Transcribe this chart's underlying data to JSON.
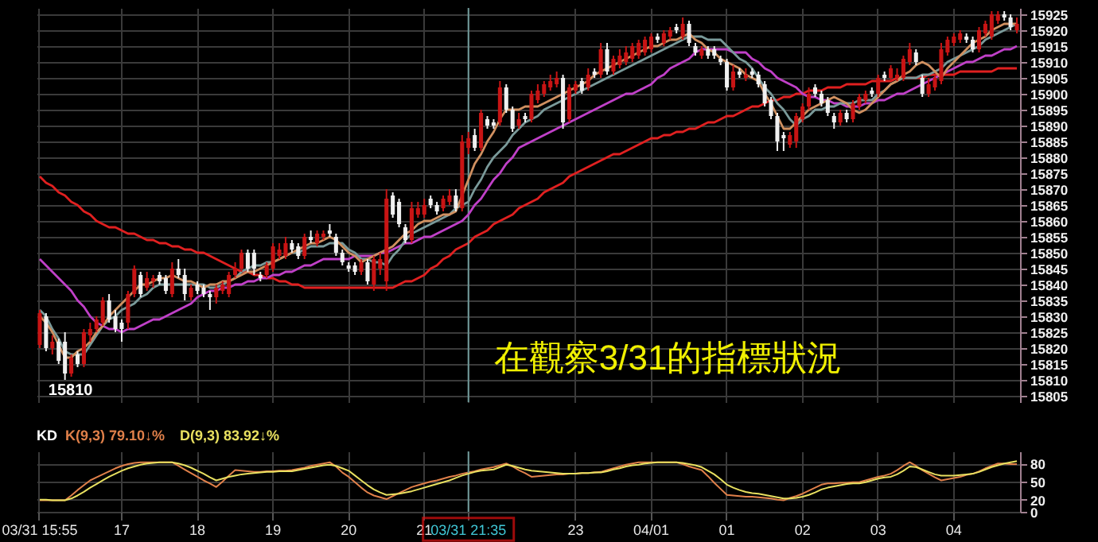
{
  "chart_data": [
    {
      "type": "candlestick",
      "categories": [
        "03/31 15:55",
        null,
        null,
        null,
        null,
        null,
        null,
        null,
        null,
        null,
        null,
        null,
        null,
        "17",
        null,
        null,
        null,
        null,
        null,
        null,
        null,
        null,
        null,
        null,
        null,
        "18",
        null,
        null,
        null,
        null,
        null,
        null,
        null,
        null,
        null,
        null,
        null,
        "19",
        null,
        null,
        null,
        null,
        null,
        null,
        null,
        null,
        null,
        null,
        null,
        "20",
        null,
        null,
        null,
        null,
        null,
        null,
        null,
        null,
        null,
        null,
        null,
        "21",
        null,
        null,
        null,
        null,
        null,
        null,
        "03/31 21:35",
        null,
        null,
        null,
        null,
        null,
        null,
        null,
        null,
        null,
        null,
        null,
        null,
        null,
        null,
        null,
        null,
        "23",
        null,
        null,
        null,
        null,
        null,
        null,
        null,
        null,
        null,
        null,
        null,
        "04/01",
        null,
        null,
        null,
        null,
        null,
        null,
        null,
        null,
        null,
        null,
        null,
        "01",
        null,
        null,
        null,
        null,
        null,
        null,
        null,
        null,
        null,
        null,
        null,
        "02",
        null,
        null,
        null,
        null,
        null,
        null,
        null,
        null,
        null,
        null,
        null,
        "03",
        null,
        null,
        null,
        null,
        null,
        null,
        null,
        null,
        null,
        null,
        null,
        "04",
        null,
        null,
        null,
        null,
        null,
        null,
        null,
        null,
        null,
        null
      ],
      "ohlc": [
        [
          15821,
          15832,
          15820,
          15831
        ],
        [
          15830,
          15831,
          15819,
          15820
        ],
        [
          15820,
          15824,
          15818,
          15822
        ],
        [
          15822,
          15823,
          15815,
          15816
        ],
        [
          15822,
          15825,
          15810,
          15812
        ],
        [
          15812,
          15818,
          15811,
          15817
        ],
        [
          15818,
          15819,
          15814,
          15815
        ],
        [
          15815,
          15826,
          15814,
          15825
        ],
        [
          15824,
          15828,
          15822,
          15826
        ],
        [
          15826,
          15830,
          15825,
          15829
        ],
        [
          15828,
          15836,
          15827,
          15835
        ],
        [
          15835,
          15837,
          15828,
          15829
        ],
        [
          15830,
          15832,
          15825,
          15826
        ],
        [
          15828,
          15829,
          15822,
          15826
        ],
        [
          15828,
          15838,
          15826,
          15837
        ],
        [
          15837,
          15846,
          15836,
          15845
        ],
        [
          15843,
          15844,
          15836,
          15837
        ],
        [
          15839,
          15844,
          15838,
          15842
        ],
        [
          15841,
          15843,
          15839,
          15842
        ],
        [
          15843,
          15844,
          15840,
          15841
        ],
        [
          15842,
          15843,
          15837,
          15838
        ],
        [
          15837,
          15847,
          15836,
          15845
        ],
        [
          15845,
          15848,
          15842,
          15843
        ],
        [
          15843,
          15845,
          15835,
          15837
        ],
        [
          15836,
          15840,
          15835,
          15839
        ],
        [
          15840,
          15841,
          15837,
          15838
        ],
        [
          15839,
          15840,
          15836,
          15837
        ],
        [
          15837,
          15838,
          15832,
          15836
        ],
        [
          15836,
          15840,
          15834,
          15839
        ],
        [
          15838,
          15841,
          15837,
          15840
        ],
        [
          15837,
          15844,
          15836,
          15843
        ],
        [
          15843,
          15847,
          15842,
          15845
        ],
        [
          15845,
          15851,
          15844,
          15850
        ],
        [
          15850,
          15851,
          15844,
          15845
        ],
        [
          15850,
          15851,
          15843,
          15845
        ],
        [
          15843,
          15844,
          15841,
          15842
        ],
        [
          15843,
          15847,
          15842,
          15846
        ],
        [
          15845,
          15853,
          15844,
          15852
        ],
        [
          15849,
          15853,
          15848,
          15851
        ],
        [
          15849,
          15855,
          15848,
          15853
        ],
        [
          15853,
          15854,
          15850,
          15851
        ],
        [
          15852,
          15853,
          15848,
          15849
        ],
        [
          15849,
          15856,
          15848,
          15855
        ],
        [
          15855,
          15857,
          15853,
          15854
        ],
        [
          15853,
          15857,
          15852,
          15856
        ],
        [
          15855,
          15857,
          15854,
          15856
        ],
        [
          15857,
          15859,
          15855,
          15856
        ],
        [
          15855,
          15856,
          15849,
          15850
        ],
        [
          15850,
          15851,
          15846,
          15847
        ],
        [
          15846,
          15847,
          15844,
          15845
        ],
        [
          15846,
          15847,
          15843,
          15844
        ],
        [
          15844,
          15848,
          15843,
          15847
        ],
        [
          15847,
          15848,
          15840,
          15841
        ],
        [
          15840,
          15849,
          15838,
          15848
        ],
        [
          15845,
          15850,
          15843,
          15848
        ],
        [
          15841,
          15870,
          15838,
          15867
        ],
        [
          15868,
          15869,
          15861,
          15862
        ],
        [
          15866,
          15867,
          15858,
          15859
        ],
        [
          15858,
          15859,
          15853,
          15854
        ],
        [
          15854,
          15866,
          15853,
          15864
        ],
        [
          15862,
          15866,
          15861,
          15864
        ],
        [
          15862,
          15867,
          15861,
          15865
        ],
        [
          15867,
          15868,
          15864,
          15865
        ],
        [
          15865,
          15866,
          15862,
          15863
        ],
        [
          15864,
          15868,
          15863,
          15867
        ],
        [
          15866,
          15870,
          15865,
          15868
        ],
        [
          15868,
          15870,
          15863,
          15864
        ],
        [
          15864,
          15887,
          15863,
          15885
        ],
        [
          15883,
          15888,
          15881,
          15886
        ],
        [
          15887,
          15889,
          15882,
          15883
        ],
        [
          15883,
          15895,
          15882,
          15894
        ],
        [
          15892,
          15893,
          15889,
          15890
        ],
        [
          15891,
          15892,
          15889,
          15890
        ],
        [
          15891,
          15904,
          15890,
          15902
        ],
        [
          15902,
          15903,
          15894,
          15895
        ],
        [
          15895,
          15896,
          15888,
          15889
        ],
        [
          15890,
          15894,
          15889,
          15892
        ],
        [
          15893,
          15894,
          15891,
          15892
        ],
        [
          15892,
          15901,
          15891,
          15900
        ],
        [
          15898,
          15903,
          15897,
          15901
        ],
        [
          15900,
          15904,
          15899,
          15903
        ],
        [
          15902,
          15906,
          15901,
          15904
        ],
        [
          15903,
          15907,
          15902,
          15905
        ],
        [
          15905,
          15906,
          15889,
          15891
        ],
        [
          15892,
          15903,
          15891,
          15902
        ],
        [
          15901,
          15904,
          15900,
          15903
        ],
        [
          15904,
          15905,
          15900,
          15901
        ],
        [
          15902,
          15908,
          15901,
          15906
        ],
        [
          15907,
          15908,
          15905,
          15906
        ],
        [
          15906,
          15916,
          15905,
          15914
        ],
        [
          15914,
          15916,
          15906,
          15907
        ],
        [
          15907,
          15912,
          15906,
          15911
        ],
        [
          15909,
          15914,
          15908,
          15912
        ],
        [
          15910,
          15915,
          15909,
          15913
        ],
        [
          15911,
          15916,
          15910,
          15915
        ],
        [
          15912,
          15917,
          15911,
          15916
        ],
        [
          15913,
          15918,
          15912,
          15917
        ],
        [
          15914,
          15919,
          15913,
          15918
        ],
        [
          15918,
          15919,
          15916,
          15917
        ],
        [
          15916,
          15920,
          15915,
          15919
        ],
        [
          15918,
          15921,
          15917,
          15920
        ],
        [
          15921,
          15922,
          15919,
          15920
        ],
        [
          15918,
          15924,
          15917,
          15922
        ],
        [
          15922,
          15923,
          15915,
          15916
        ],
        [
          15915,
          15916,
          15912,
          15913
        ],
        [
          15912,
          15915,
          15911,
          15914
        ],
        [
          15914,
          15915,
          15911,
          15912
        ],
        [
          15914,
          15915,
          15911,
          15912
        ],
        [
          15911,
          15912,
          15909,
          15910
        ],
        [
          15910,
          15911,
          15901,
          15902
        ],
        [
          15902,
          15909,
          15901,
          15907
        ],
        [
          15907,
          15908,
          15905,
          15906
        ],
        [
          15905,
          15908,
          15904,
          15906
        ],
        [
          15907,
          15908,
          15905,
          15906
        ],
        [
          15906,
          15907,
          15902,
          15903
        ],
        [
          15903,
          15904,
          15896,
          15897
        ],
        [
          15898,
          15899,
          15892,
          15893
        ],
        [
          15893,
          15894,
          15882,
          15885
        ],
        [
          15887,
          15888,
          15882,
          15886
        ],
        [
          15884,
          15888,
          15883,
          15887
        ],
        [
          15885,
          15894,
          15883,
          15893
        ],
        [
          15892,
          15897,
          15891,
          15896
        ],
        [
          15896,
          15902,
          15895,
          15900
        ],
        [
          15902,
          15903,
          15899,
          15900
        ],
        [
          15900,
          15901,
          15896,
          15897
        ],
        [
          15898,
          15899,
          15893,
          15894
        ],
        [
          15893,
          15894,
          15889,
          15891
        ],
        [
          15891,
          15895,
          15890,
          15894
        ],
        [
          15894,
          15895,
          15891,
          15892
        ],
        [
          15892,
          15898,
          15891,
          15897
        ],
        [
          15896,
          15900,
          15895,
          15899
        ],
        [
          15898,
          15901,
          15897,
          15900
        ],
        [
          15901,
          15902,
          15899,
          15900
        ],
        [
          15900,
          15906,
          15899,
          15905
        ],
        [
          15906,
          15907,
          15904,
          15905
        ],
        [
          15905,
          15909,
          15904,
          15908
        ],
        [
          15905,
          15908,
          15904,
          15906
        ],
        [
          15905,
          15912,
          15904,
          15911
        ],
        [
          15910,
          15916,
          15909,
          15914
        ],
        [
          15913,
          15914,
          15909,
          15910
        ],
        [
          15905,
          15906,
          15899,
          15900
        ],
        [
          15900,
          15905,
          15899,
          15903
        ],
        [
          15902,
          15906,
          15901,
          15905
        ],
        [
          15904,
          15916,
          15903,
          15914
        ],
        [
          15913,
          15918,
          15912,
          15917
        ],
        [
          15916,
          15919,
          15915,
          15918
        ],
        [
          15917,
          15920,
          15916,
          15919
        ],
        [
          15918,
          15919,
          15916,
          15917
        ],
        [
          15917,
          15918,
          15913,
          15914
        ],
        [
          15914,
          15921,
          15913,
          15920
        ],
        [
          15919,
          15923,
          15918,
          15922
        ],
        [
          15918,
          15926,
          15917,
          15925
        ],
        [
          15923,
          15926,
          15922,
          15925
        ],
        [
          15925,
          15926,
          15923,
          15924
        ],
        [
          15924,
          15925,
          15920,
          15921
        ],
        [
          15920,
          15924,
          15919,
          15922
        ]
      ],
      "series": [
        {
          "type": "line",
          "color": "#e02020",
          "values": [
            15874,
            15872,
            15871,
            15869,
            15868,
            15866,
            15865,
            15863,
            15862,
            15860,
            15859,
            15858,
            15858,
            15857,
            15856,
            15856,
            15855,
            15854,
            15854,
            15853,
            15853,
            15852,
            15852,
            15851,
            15851,
            15850,
            15850,
            15849,
            15848,
            15847,
            15846,
            15845,
            15844,
            15844,
            15843,
            15843,
            15842,
            15842,
            15841,
            15841,
            15840,
            15840,
            15839,
            15839,
            15839,
            15839,
            15839,
            15839,
            15839,
            15839,
            15839,
            15839,
            15839,
            15839,
            15839,
            15839,
            15839,
            15840,
            15841,
            15841,
            15842,
            15843,
            15845,
            15846,
            15848,
            15849,
            15851,
            15852,
            15853,
            15855,
            15856,
            15857,
            15859,
            15860,
            15861,
            15862,
            15864,
            15865,
            15866,
            15867,
            15869,
            15870,
            15871,
            15872,
            15874,
            15875,
            15876,
            15877,
            15878,
            15879,
            15880,
            15881,
            15881,
            15882,
            15883,
            15884,
            15885,
            15886,
            15886,
            15887,
            15887,
            15888,
            15888,
            15889,
            15889,
            15890,
            15891,
            15891,
            15892,
            15893,
            15893,
            15894,
            15895,
            15896,
            15896,
            15897,
            15898,
            15898,
            15899,
            15899,
            15900,
            15900,
            15901,
            15901,
            15901,
            15902,
            15902,
            15902,
            15903,
            15903,
            15903,
            15903,
            15904,
            15904,
            15904,
            15904,
            15905,
            15905,
            15905,
            15905,
            15905,
            15906,
            15906,
            15906,
            15906,
            15906,
            15907,
            15907,
            15907,
            15907,
            15907,
            15907,
            15908,
            15908,
            15908,
            15908
          ]
        },
        {
          "type": "line",
          "color": "#c040c8",
          "values": [
            15848,
            15846,
            15844,
            15842,
            15840,
            15838,
            15835,
            15833,
            15830,
            15828,
            15827,
            15826,
            15826,
            15825,
            15826,
            15826,
            15827,
            15828,
            15829,
            15829,
            15830,
            15831,
            15832,
            15833,
            15834,
            15836,
            15837,
            15838,
            15838,
            15839,
            15839,
            15840,
            15840,
            15841,
            15841,
            15842,
            15842,
            15843,
            15843,
            15844,
            15844,
            15845,
            15846,
            15846,
            15847,
            15848,
            15848,
            15848,
            15848,
            15848,
            15849,
            15849,
            15849,
            15849,
            15850,
            15850,
            15851,
            15852,
            15853,
            15853,
            15854,
            15855,
            15855,
            15856,
            15857,
            15858,
            15859,
            15860,
            15862,
            15865,
            15867,
            15870,
            15873,
            15875,
            15878,
            15880,
            15883,
            15884,
            15885,
            15886,
            15887,
            15888,
            15889,
            15890,
            15891,
            15892,
            15893,
            15894,
            15895,
            15896,
            15897,
            15898,
            15899,
            15900,
            15900,
            15901,
            15902,
            15903,
            15905,
            15906,
            15908,
            15909,
            15910,
            15911,
            15913,
            15914,
            15914,
            15914,
            15914,
            15914,
            15913,
            15913,
            15913,
            15911,
            15910,
            15908,
            15907,
            15905,
            15904,
            15903,
            15902,
            15900,
            15899,
            15899,
            15898,
            15898,
            15897,
            15897,
            15896,
            15896,
            15896,
            15897,
            15897,
            15898,
            15898,
            15899,
            15900,
            15900,
            15901,
            15902,
            15903,
            15904,
            15905,
            15906,
            15907,
            15908,
            15909,
            15910,
            15910,
            15911,
            15912,
            15912,
            15913,
            15914,
            15914,
            15915
          ]
        },
        {
          "type": "line",
          "color": "#7a9a9a",
          "values": [
            15832,
            15830,
            15826,
            15823,
            15819,
            15818,
            15818,
            15818,
            15821,
            15824,
            15827,
            15829,
            15830,
            15832,
            15833,
            15834,
            15836,
            15837,
            15839,
            15840,
            15840,
            15840,
            15840,
            15840,
            15840,
            15840,
            15840,
            15839,
            15839,
            15840,
            15841,
            15842,
            15844,
            15845,
            15846,
            15846,
            15847,
            15847,
            15848,
            15849,
            15850,
            15850,
            15851,
            15852,
            15852,
            15852,
            15853,
            15853,
            15853,
            15851,
            15850,
            15848,
            15848,
            15847,
            15847,
            15846,
            15849,
            15851,
            15854,
            15856,
            15857,
            15858,
            15859,
            15860,
            15861,
            15862,
            15864,
            15865,
            15866,
            15870,
            15873,
            15877,
            15880,
            15882,
            15884,
            15887,
            15889,
            15891,
            15892,
            15893,
            15895,
            15896,
            15897,
            15898,
            15899,
            15900,
            15901,
            15902,
            15903,
            15904,
            15905,
            15906,
            15907,
            15908,
            15909,
            15910,
            15911,
            15912,
            15913,
            15914,
            15915,
            15916,
            15917,
            15918,
            15918,
            15918,
            15917,
            15917,
            15917,
            15915,
            15913,
            15911,
            15910,
            15908,
            15905,
            15902,
            15900,
            15897,
            15895,
            15892,
            15890,
            15892,
            15893,
            15895,
            15895,
            15896,
            15896,
            15897,
            15897,
            15897,
            15898,
            15898,
            15898,
            15900,
            15901,
            15903,
            15904,
            15905,
            15905,
            15905,
            15906,
            15906,
            15907,
            15908,
            15910,
            15911,
            15912,
            15913,
            15914,
            15915,
            15917,
            15918,
            15919,
            15920,
            15921,
            15922
          ]
        },
        {
          "type": "line",
          "color": "#d09060",
          "values": [
            15830,
            15828,
            15825,
            15821,
            15817,
            15817,
            15819,
            15820,
            15822,
            15825,
            15827,
            15830,
            15832,
            15834,
            15836,
            15838,
            15840,
            15840,
            15841,
            15842,
            15842,
            15843,
            15842,
            15841,
            15841,
            15840,
            15839,
            15840,
            15840,
            15841,
            15841,
            15842,
            15843,
            15844,
            15844,
            15845,
            15846,
            15847,
            15848,
            15849,
            15850,
            15851,
            15852,
            15853,
            15853,
            15854,
            15855,
            15854,
            15852,
            15850,
            15849,
            15847,
            15848,
            15849,
            15850,
            15851,
            15852,
            15854,
            15856,
            15857,
            15859,
            15860,
            15860,
            15861,
            15862,
            15862,
            15863,
            15868,
            15873,
            15878,
            15881,
            15885,
            15888,
            15892,
            15895,
            15895,
            15895,
            15896,
            15896,
            15896,
            15897,
            15898,
            15899,
            15900,
            15901,
            15902,
            15903,
            15904,
            15906,
            15907,
            15908,
            15909,
            15910,
            15911,
            15912,
            15913,
            15914,
            15915,
            15915,
            15916,
            15917,
            15917,
            15918,
            15919,
            15917,
            15916,
            15914,
            15913,
            15911,
            15910,
            15909,
            15908,
            15906,
            15905,
            15904,
            15900,
            15897,
            15893,
            15889,
            15889,
            15891,
            15893,
            15895,
            15896,
            15897,
            15898,
            15899,
            15898,
            15897,
            15895,
            15894,
            15895,
            15897,
            15899,
            15901,
            15903,
            15904,
            15906,
            15907,
            15909,
            15910,
            15909,
            15907,
            15905,
            15908,
            15910,
            15912,
            15914,
            15916,
            15917,
            15918,
            15920,
            15921,
            15922,
            15922,
            15922
          ]
        }
      ],
      "ylim": [
        15803,
        15927
      ],
      "yticks": [
        15805,
        15810,
        15815,
        15820,
        15825,
        15830,
        15835,
        15840,
        15845,
        15850,
        15855,
        15860,
        15865,
        15870,
        15875,
        15880,
        15885,
        15890,
        15895,
        15900,
        15905,
        15910,
        15915,
        15920,
        15925
      ],
      "grid": true,
      "tick_labels": "y",
      "ref_lines": [
        {
          "axis": "x",
          "value": "03/31 21:35"
        }
      ],
      "annotations": [
        "15810",
        "在觀察3/31的指標狀況"
      ]
    },
    {
      "type": "line",
      "legend_title": "KD",
      "legend": "top left",
      "categories": [
        "03/31 15:55",
        null,
        null,
        null,
        null,
        null,
        null,
        null,
        null,
        null,
        null,
        null,
        null,
        "17",
        null,
        null,
        null,
        null,
        null,
        null,
        null,
        null,
        null,
        null,
        null,
        "18",
        null,
        null,
        null,
        null,
        null,
        null,
        null,
        null,
        null,
        null,
        null,
        "19",
        null,
        null,
        null,
        null,
        null,
        null,
        null,
        null,
        null,
        null,
        null,
        "20",
        null,
        null,
        null,
        null,
        null,
        null,
        null,
        null,
        null,
        null,
        null,
        "21",
        null,
        null,
        null,
        null,
        null,
        null,
        "03/31 21:35",
        null,
        null,
        null,
        null,
        null,
        null,
        null,
        null,
        null,
        null,
        null,
        null,
        null,
        null,
        null,
        null,
        "23",
        null,
        null,
        null,
        null,
        null,
        null,
        null,
        null,
        null,
        null,
        null,
        "04/01",
        null,
        null,
        null,
        null,
        null,
        null,
        null,
        null,
        null,
        null,
        null,
        "01",
        null,
        null,
        null,
        null,
        null,
        null,
        null,
        null,
        null,
        null,
        null,
        "02",
        null,
        null,
        null,
        null,
        null,
        null,
        null,
        null,
        null,
        null,
        null,
        "03",
        null,
        null,
        null,
        null,
        null,
        null,
        null,
        null,
        null,
        null,
        null,
        "04",
        null,
        null,
        null,
        null,
        null,
        null,
        null,
        null,
        null,
        null
      ],
      "series": [
        {
          "name": "K(9,3) 79.10↓%",
          "color": "#e0804a",
          "values": [
            19,
            19,
            19,
            19,
            19,
            27,
            36,
            44,
            52,
            57,
            62,
            67,
            72,
            76,
            79,
            81,
            82,
            82,
            82,
            82,
            82,
            82,
            76,
            70,
            64,
            58,
            52,
            47,
            41,
            50,
            60,
            69,
            68,
            67,
            66,
            66,
            67,
            67,
            68,
            68,
            69,
            71,
            73,
            76,
            78,
            80,
            82,
            75,
            65,
            58,
            49,
            40,
            32,
            27,
            24,
            21,
            26,
            31,
            36,
            41,
            44,
            47,
            50,
            52,
            55,
            58,
            60,
            63,
            65,
            67,
            70,
            72,
            74,
            77,
            80,
            75,
            69,
            64,
            58,
            59,
            60,
            61,
            62,
            62,
            63,
            63,
            64,
            64,
            65,
            66,
            69,
            72,
            75,
            78,
            80,
            82,
            82,
            82,
            82,
            82,
            82,
            82,
            79,
            75,
            72,
            69,
            59,
            48,
            38,
            28,
            27,
            26,
            25,
            25,
            24,
            23,
            22,
            20,
            19,
            23,
            26,
            30,
            35,
            40,
            45,
            47,
            47,
            48,
            48,
            49,
            49,
            52,
            55,
            58,
            60,
            63,
            69,
            76,
            82,
            76,
            69,
            63,
            57,
            52,
            54,
            56,
            58,
            61,
            63,
            67,
            72,
            76,
            80,
            80,
            79,
            79
          ]
        },
        {
          "name": "D(9,3) 83.92↓%",
          "color": "#e8e060",
          "values": [
            20,
            20,
            19,
            19,
            19,
            22,
            27,
            33,
            40,
            46,
            52,
            58,
            63,
            68,
            72,
            75,
            78,
            80,
            81,
            82,
            82,
            82,
            80,
            77,
            73,
            68,
            63,
            57,
            52,
            55,
            58,
            60,
            62,
            63,
            64,
            65,
            66,
            66,
            67,
            67,
            67,
            69,
            71,
            73,
            75,
            77,
            78,
            76,
            72,
            68,
            60,
            52,
            44,
            37,
            32,
            28,
            29,
            30,
            32,
            34,
            37,
            40,
            43,
            46,
            49,
            52,
            56,
            60,
            63,
            66,
            68,
            69,
            70,
            74,
            78,
            76,
            73,
            70,
            68,
            67,
            66,
            65,
            64,
            63,
            63,
            63,
            64,
            64,
            65,
            65,
            67,
            70,
            72,
            75,
            77,
            78,
            80,
            81,
            82,
            82,
            82,
            82,
            81,
            79,
            77,
            74,
            68,
            62,
            54,
            45,
            40,
            36,
            33,
            31,
            30,
            28,
            26,
            24,
            22,
            22,
            23,
            25,
            28,
            32,
            37,
            40,
            42,
            44,
            46,
            47,
            47,
            49,
            52,
            55,
            57,
            58,
            62,
            68,
            75,
            74,
            70,
            66,
            62,
            60,
            60,
            60,
            61,
            62,
            63,
            66,
            70,
            74,
            77,
            80,
            82,
            84
          ]
        }
      ],
      "ylim": [
        0,
        100
      ],
      "yticks": [
        0,
        20,
        50,
        80
      ],
      "grid": true,
      "ref_lines": [
        {
          "axis": "x",
          "value": "03/31 21:35"
        }
      ]
    }
  ]
}
